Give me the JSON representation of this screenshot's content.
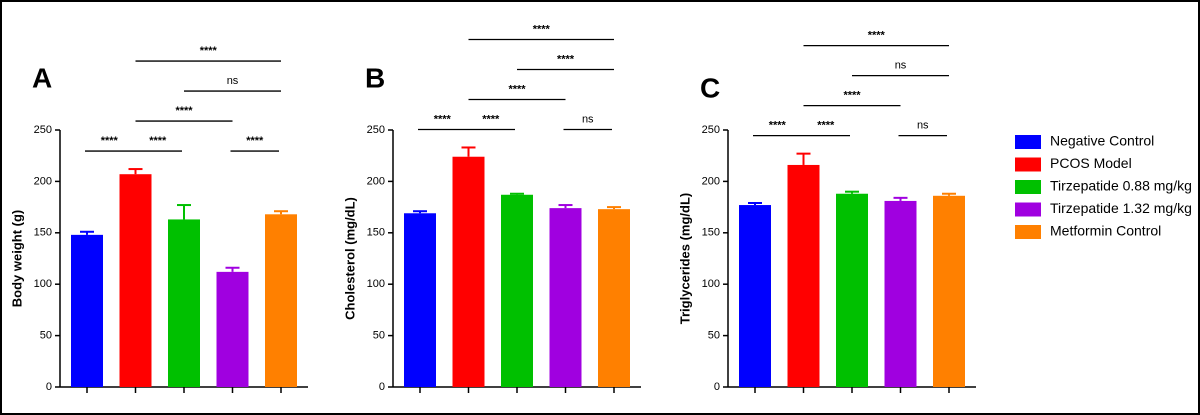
{
  "legend": {
    "labels": [
      "Negative Control",
      "PCOS Model",
      "Tirzepatide 0.88 mg/kg",
      "Tirzepatide 1.32 mg/kg",
      "Metformin Control"
    ],
    "colors": [
      "#0000ff",
      "#ff0000",
      "#00c000",
      "#a000e0",
      "#ff8000"
    ]
  },
  "chart_data": [
    {
      "type": "bar",
      "label": "A",
      "ylabel": "Body weight (g)",
      "values": [
        148,
        207,
        163,
        112,
        168
      ],
      "errors": [
        3,
        5,
        14,
        4,
        3
      ],
      "ylim": [
        0,
        250
      ],
      "yticks": [
        0,
        50,
        100,
        150,
        200,
        250
      ],
      "comparisons": [
        {
          "from": 0,
          "to": 1,
          "label": "****"
        },
        {
          "from": 1,
          "to": 2,
          "label": "****"
        },
        {
          "from": 3,
          "to": 4,
          "label": "****"
        },
        {
          "from": 1,
          "to": 3,
          "label": "****"
        },
        {
          "from": 2,
          "to": 4,
          "label": "ns"
        },
        {
          "from": 1,
          "to": 4,
          "label": "****"
        }
      ]
    },
    {
      "type": "bar",
      "label": "B",
      "ylabel": "Cholesterol (mg/dL)",
      "values": [
        169,
        224,
        187,
        174,
        173
      ],
      "errors": [
        2,
        9,
        1,
        3,
        2
      ],
      "ylim": [
        0,
        250
      ],
      "yticks": [
        0,
        50,
        100,
        150,
        200,
        250
      ],
      "comparisons": [
        {
          "from": 0,
          "to": 1,
          "label": "****"
        },
        {
          "from": 1,
          "to": 2,
          "label": "****"
        },
        {
          "from": 3,
          "to": 4,
          "label": "ns"
        },
        {
          "from": 1,
          "to": 3,
          "label": "****"
        },
        {
          "from": 2,
          "to": 4,
          "label": "****"
        },
        {
          "from": 1,
          "to": 4,
          "label": "****"
        }
      ]
    },
    {
      "type": "bar",
      "label": "C",
      "ylabel": "Triglycerides (mg/dL)",
      "values": [
        177,
        216,
        188,
        181,
        186
      ],
      "errors": [
        2,
        11,
        2,
        3,
        2
      ],
      "ylim": [
        0,
        250
      ],
      "yticks": [
        0,
        50,
        100,
        150,
        200,
        250
      ],
      "comparisons": [
        {
          "from": 0,
          "to": 1,
          "label": "****"
        },
        {
          "from": 1,
          "to": 2,
          "label": "****"
        },
        {
          "from": 3,
          "to": 4,
          "label": "ns"
        },
        {
          "from": 1,
          "to": 3,
          "label": "****"
        },
        {
          "from": 2,
          "to": 4,
          "label": "ns"
        },
        {
          "from": 1,
          "to": 4,
          "label": "****"
        }
      ]
    }
  ]
}
